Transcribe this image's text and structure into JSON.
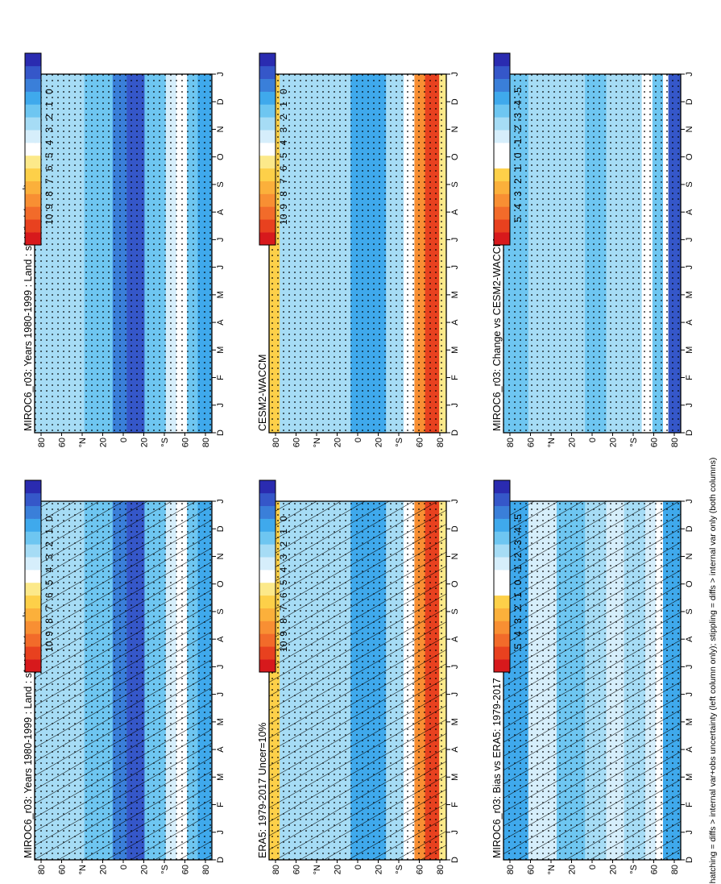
{
  "footnote": "hatching = diffs > internal var+obs uncertainty (left column only); stippling = diffs > internal var only (both columns)",
  "month_labels": [
    "D",
    "J",
    "F",
    "M",
    "A",
    "M",
    "J",
    "J",
    "A",
    "S",
    "O",
    "N",
    "D",
    "J"
  ],
  "lat_labels": [
    "80",
    "60",
    "°N",
    "20",
    "0",
    "20",
    "°S",
    "60",
    "80"
  ],
  "colorbars": {
    "absolute": {
      "labels": [
        "10",
        "9",
        "8",
        "7",
        "6",
        "5",
        "4",
        "3",
        "2",
        "1",
        "0"
      ],
      "colors": [
        "#d7191c",
        "#e8411f",
        "#f26b2a",
        "#f88f33",
        "#fbb03b",
        "#fdd049",
        "#fce98a",
        "#ffffff",
        "#d6eefb",
        "#a6dcf5",
        "#6ec6f1",
        "#3fa9ec",
        "#3a7fd9",
        "#3557c9",
        "#2a2bb0"
      ]
    },
    "difference": {
      "labels": [
        "5",
        "4",
        "3",
        "2",
        "1",
        "0",
        "-1",
        "-2",
        "-3",
        "-4",
        "-5"
      ],
      "colors": [
        "#d7191c",
        "#e8411f",
        "#f26b2a",
        "#f88f33",
        "#fbb03b",
        "#fdd049",
        "#ffffff",
        "#ffffff",
        "#d6eefb",
        "#a6dcf5",
        "#6ec6f1",
        "#3fa9ec",
        "#3a7fd9",
        "#3557c9",
        "#2a2bb0"
      ]
    }
  },
  "chart_data": [
    {
      "type": "heatmap",
      "panel": "left-top",
      "title": "MIROC6_r03: Years 1980-1999 : Land : sfcWind (m s",
      "title_sup": "-1",
      "title_end": ")",
      "x": [
        "D",
        "J",
        "F",
        "M",
        "A",
        "M",
        "J",
        "J",
        "A",
        "S",
        "O",
        "N",
        "D",
        "J"
      ],
      "y": [
        "80",
        "60",
        "°N",
        "20",
        "0",
        "20",
        "°S",
        "60",
        "80"
      ],
      "colorbar": "absolute",
      "hatching": true,
      "stippling": true
    },
    {
      "type": "heatmap",
      "panel": "right-top",
      "title": "MIROC6_r03: Years 1980-1999 : Land : sfcWind (m s",
      "title_sup": "-1",
      "title_end": ")",
      "x": [
        "D",
        "J",
        "F",
        "M",
        "A",
        "M",
        "J",
        "J",
        "A",
        "S",
        "O",
        "N",
        "D",
        "J"
      ],
      "y": [
        "80",
        "60",
        "°N",
        "20",
        "0",
        "20",
        "°S",
        "60",
        "80"
      ],
      "colorbar": "absolute",
      "hatching": false,
      "stippling": true
    },
    {
      "type": "heatmap",
      "panel": "left-middle",
      "title": "ERA5: 1979-2017 Uncer=10%",
      "x": [
        "D",
        "J",
        "F",
        "M",
        "A",
        "M",
        "J",
        "J",
        "A",
        "S",
        "O",
        "N",
        "D",
        "J"
      ],
      "y": [
        "80",
        "60",
        "°N",
        "20",
        "0",
        "20",
        "°S",
        "60",
        "80"
      ],
      "colorbar": "absolute",
      "hatching": true,
      "stippling": true
    },
    {
      "type": "heatmap",
      "panel": "right-middle",
      "title": "CESM2-WACCM",
      "x": [
        "D",
        "J",
        "F",
        "M",
        "A",
        "M",
        "J",
        "J",
        "A",
        "S",
        "O",
        "N",
        "D",
        "J"
      ],
      "y": [
        "80",
        "60",
        "°N",
        "20",
        "0",
        "20",
        "°S",
        "60",
        "80"
      ],
      "colorbar": "absolute",
      "hatching": false,
      "stippling": true
    },
    {
      "type": "heatmap",
      "panel": "left-bottom",
      "title": "MIROC6_r03: Bias vs ERA5: 1979-2017",
      "x": [
        "D",
        "J",
        "F",
        "M",
        "A",
        "M",
        "J",
        "J",
        "A",
        "S",
        "O",
        "N",
        "D",
        "J"
      ],
      "y": [
        "80",
        "60",
        "°N",
        "20",
        "0",
        "20",
        "°S",
        "60",
        "80"
      ],
      "colorbar": "difference",
      "hatching": true,
      "stippling": true
    },
    {
      "type": "heatmap",
      "panel": "right-bottom",
      "title": "MIROC6_r03: Change vs CESM2-WACCM",
      "x": [
        "D",
        "J",
        "F",
        "M",
        "A",
        "M",
        "J",
        "J",
        "A",
        "S",
        "O",
        "N",
        "D",
        "J"
      ],
      "y": [
        "80",
        "60",
        "°N",
        "20",
        "0",
        "20",
        "°S",
        "60",
        "80"
      ],
      "colorbar": "difference",
      "hatching": false,
      "stippling": true
    }
  ]
}
